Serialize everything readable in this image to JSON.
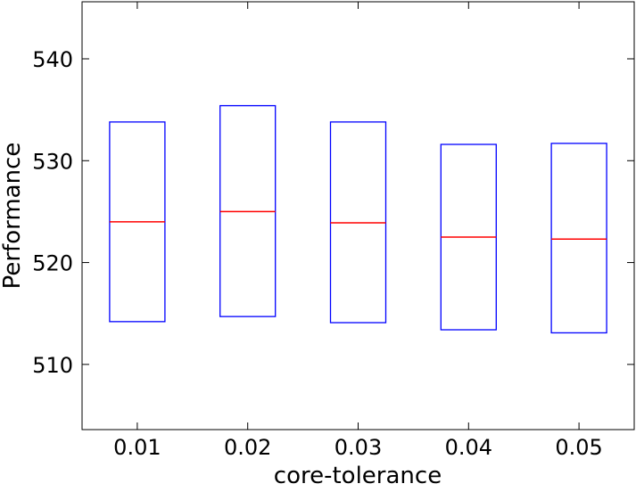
{
  "chart_data": {
    "type": "box",
    "xlabel": "core-tolerance",
    "ylabel": "Performance",
    "ylim": [
      503.6,
      545.6
    ],
    "yticks": [
      510,
      520,
      530,
      540
    ],
    "ytick_labels": [
      "510",
      "520",
      "530",
      "540"
    ],
    "categories": [
      "0.01",
      "0.02",
      "0.03",
      "0.04",
      "0.05"
    ],
    "boxes": [
      {
        "category": "0.01",
        "q1": 514.2,
        "median": 524.0,
        "q3": 533.8
      },
      {
        "category": "0.02",
        "q1": 514.7,
        "median": 525.0,
        "q3": 535.4
      },
      {
        "category": "0.03",
        "q1": 514.1,
        "median": 523.9,
        "q3": 533.8
      },
      {
        "category": "0.04",
        "q1": 513.4,
        "median": 522.5,
        "q3": 531.6
      },
      {
        "category": "0.05",
        "q1": 513.1,
        "median": 522.3,
        "q3": 531.7
      }
    ],
    "grid": false,
    "colors": {
      "box": "#0000ff",
      "median": "#ff0000",
      "axes": "#000000"
    }
  }
}
